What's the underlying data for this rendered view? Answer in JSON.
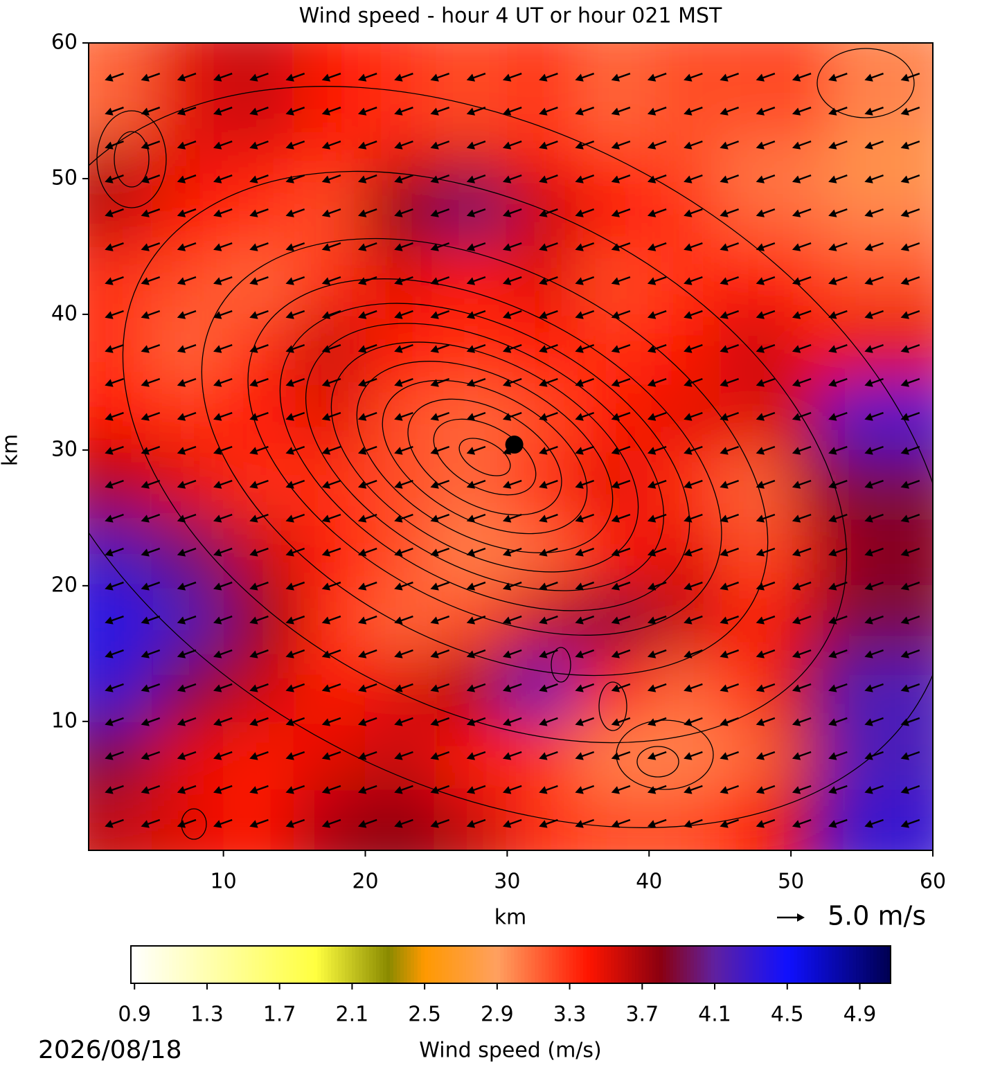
{
  "chart_data": {
    "type": "heatmap",
    "title": "Wind speed - hour 4 UT or hour 021 MST",
    "xlabel": "km",
    "ylabel": "km",
    "xlim": [
      0.5,
      60
    ],
    "ylim": [
      0.5,
      60
    ],
    "xticks": [
      10,
      20,
      30,
      40,
      50,
      60
    ],
    "yticks": [
      10,
      20,
      30,
      40,
      50,
      60
    ],
    "x": [
      2.5,
      7.5,
      12.5,
      17.5,
      22.5,
      27.5,
      32.5,
      37.5,
      42.5,
      47.5,
      52.5,
      57.5
    ],
    "y": [
      2.5,
      7.5,
      12.5,
      17.5,
      22.5,
      27.5,
      32.5,
      37.5,
      42.5,
      47.5,
      52.5,
      57.5
    ],
    "z": [
      [
        3.6,
        3.5,
        3.4,
        3.7,
        3.8,
        3.6,
        3.3,
        3.2,
        3.2,
        3.4,
        3.8,
        4.3
      ],
      [
        3.9,
        3.5,
        3.4,
        3.5,
        3.6,
        3.4,
        3.3,
        3.0,
        3.0,
        3.1,
        3.6,
        4.2
      ],
      [
        4.3,
        3.9,
        3.6,
        3.4,
        3.5,
        3.7,
        4.2,
        3.4,
        3.1,
        3.3,
        3.8,
        4.2
      ],
      [
        4.4,
        4.2,
        3.8,
        3.3,
        3.1,
        3.2,
        3.6,
        3.9,
        3.6,
        3.4,
        3.6,
        3.9
      ],
      [
        4.2,
        4.0,
        3.6,
        3.4,
        3.2,
        3.0,
        3.1,
        3.4,
        3.5,
        3.2,
        3.5,
        3.8
      ],
      [
        3.7,
        3.5,
        3.3,
        3.3,
        3.2,
        3.1,
        3.3,
        3.5,
        3.3,
        3.1,
        3.7,
        3.9
      ],
      [
        3.4,
        3.3,
        3.4,
        3.5,
        3.2,
        3.1,
        3.2,
        3.4,
        3.5,
        3.5,
        3.7,
        4.3
      ],
      [
        3.3,
        3.1,
        3.3,
        3.6,
        3.4,
        3.3,
        3.4,
        3.3,
        3.4,
        3.6,
        3.4,
        3.5
      ],
      [
        3.3,
        3.2,
        3.1,
        3.3,
        3.5,
        3.4,
        3.5,
        3.2,
        3.3,
        3.4,
        3.3,
        3.2
      ],
      [
        3.6,
        3.4,
        3.3,
        3.2,
        3.8,
        4.0,
        3.6,
        3.4,
        3.3,
        3.1,
        3.1,
        3.0
      ],
      [
        3.7,
        3.5,
        3.4,
        3.3,
        3.5,
        3.6,
        3.4,
        3.3,
        3.2,
        3.0,
        3.0,
        2.8
      ],
      [
        3.1,
        3.5,
        3.6,
        3.4,
        3.3,
        3.2,
        3.3,
        3.1,
        3.2,
        3.2,
        3.3,
        3.0
      ]
    ],
    "colormap": [
      [
        0.88,
        "#ffffff"
      ],
      [
        1.9,
        "#ffff40"
      ],
      [
        2.3,
        "#8a8a00"
      ],
      [
        2.5,
        "#ff9900"
      ],
      [
        2.9,
        "#ffa060"
      ],
      [
        3.4,
        "#ff1500"
      ],
      [
        3.8,
        "#8b0010"
      ],
      [
        4.1,
        "#6020a0"
      ],
      [
        4.5,
        "#1010ff"
      ],
      [
        5.07,
        "#000050"
      ]
    ],
    "clim": [
      0.88,
      5.07
    ],
    "cticks": [
      0.9,
      1.3,
      1.7,
      2.1,
      2.5,
      2.9,
      3.3,
      3.7,
      4.1,
      4.5,
      4.9
    ],
    "clabel": "Wind speed (m/s)",
    "quiver": {
      "x": [
        2.3,
        4.85,
        7.4,
        9.95,
        12.5,
        15.05,
        17.6,
        20.15,
        22.7,
        25.25,
        27.8,
        30.35,
        32.9,
        35.45,
        38,
        40.55,
        43.1,
        45.65,
        48.2,
        50.75,
        53.3,
        55.85,
        58.4
      ],
      "y": [
        2.5,
        5,
        7.5,
        10,
        12.5,
        15,
        17.5,
        20,
        22.5,
        25,
        27.5,
        30,
        32.5,
        35,
        37.5,
        40,
        42.5,
        45,
        47.5,
        50,
        52.5,
        55,
        57.5
      ],
      "u": -3.4,
      "v": -1.2,
      "color": "#000000"
    },
    "quiver_key": {
      "value": 5,
      "label": "5.0 m/s"
    },
    "site": [
      30.5,
      30.4
    ],
    "date": "2026/08/18"
  }
}
